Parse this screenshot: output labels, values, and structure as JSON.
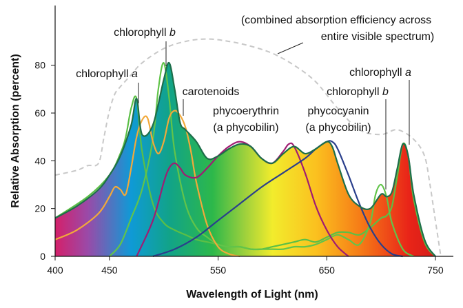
{
  "chart_data": {
    "type": "area",
    "xlabel": "Wavelength of Light (nm)",
    "ylabel": "Relative Absorption (percent)",
    "xlim": [
      400,
      760
    ],
    "ylim": [
      0,
      105
    ],
    "xticks": [
      400,
      450,
      550,
      650,
      750
    ],
    "yticks": [
      0,
      20,
      40,
      60,
      80
    ],
    "grid": false,
    "spectrum_gradient": [
      {
        "nm": 400,
        "color": "#d4206a"
      },
      {
        "nm": 430,
        "color": "#9a4aa8"
      },
      {
        "nm": 470,
        "color": "#0f9ad6"
      },
      {
        "nm": 505,
        "color": "#11a389"
      },
      {
        "nm": 545,
        "color": "#2db84a"
      },
      {
        "nm": 575,
        "color": "#9fd13c"
      },
      {
        "nm": 600,
        "color": "#f2ec2c"
      },
      {
        "nm": 640,
        "color": "#fbc11f"
      },
      {
        "nm": 680,
        "color": "#f67d17"
      },
      {
        "nm": 725,
        "color": "#e92518"
      },
      {
        "nm": 755,
        "color": "#d11a1a"
      }
    ],
    "envelope": {
      "name": "absorption-envelope",
      "color": "#1d6e4a",
      "x": [
        400,
        420,
        440,
        450,
        460,
        470,
        475,
        480,
        490,
        500,
        505,
        510,
        515,
        520,
        530,
        540,
        550,
        560,
        570,
        580,
        590,
        600,
        610,
        620,
        630,
        640,
        650,
        655,
        660,
        670,
        680,
        690,
        700,
        705,
        710,
        715,
        720,
        725,
        730,
        740,
        750
      ],
      "y": [
        16,
        21,
        28,
        34,
        42,
        55,
        66,
        51,
        55,
        74,
        81,
        70,
        56,
        53,
        48,
        41,
        42,
        45,
        47,
        46,
        41,
        39,
        43,
        46,
        43,
        45,
        48,
        46,
        39,
        26,
        21,
        20,
        26,
        25,
        27,
        37,
        47,
        42,
        26,
        7,
        0
      ]
    },
    "series": [
      {
        "label": "chlorophyll a",
        "color": "#5bbf46",
        "x": [
          400,
          430,
          450,
          460,
          465,
          470,
          475,
          480,
          490,
          500,
          510,
          520,
          530,
          540,
          550,
          560,
          570,
          580,
          590,
          600,
          610,
          620,
          630,
          640,
          650,
          660,
          670,
          680,
          690,
          700,
          705,
          710,
          715,
          720,
          725,
          730,
          740,
          750
        ],
        "y": [
          16,
          25,
          34,
          43,
          50,
          62,
          66,
          44,
          22,
          14,
          11,
          9,
          7,
          6,
          5,
          4,
          4,
          3,
          3,
          4,
          5,
          6,
          7,
          6,
          8,
          10,
          10,
          9,
          12,
          16,
          17,
          21,
          34,
          47,
          42,
          24,
          6,
          0
        ]
      },
      {
        "label": "chlorophyll b",
        "color": "#62c44a",
        "x": [
          450,
          460,
          470,
          480,
          490,
          495,
          500,
          505,
          510,
          520,
          530,
          540,
          550,
          560,
          570,
          580,
          590,
          600,
          610,
          620,
          630,
          640,
          650,
          660,
          670,
          680,
          690,
          695,
          700,
          705,
          710,
          720,
          730
        ],
        "y": [
          0,
          5,
          16,
          28,
          49,
          70,
          81,
          66,
          44,
          22,
          12,
          8,
          5,
          4,
          4,
          3,
          3,
          3,
          3,
          4,
          4,
          5,
          7,
          9,
          7,
          5,
          14,
          26,
          30,
          25,
          14,
          3,
          0
        ]
      },
      {
        "label": "carotenoids",
        "color": "#f2a93a",
        "x": [
          400,
          420,
          440,
          450,
          455,
          460,
          465,
          470,
          475,
          480,
          485,
          490,
          495,
          500,
          505,
          510,
          515,
          520,
          525,
          530,
          540,
          550,
          560,
          570
        ],
        "y": [
          7,
          11,
          18,
          25,
          29,
          28,
          26,
          37,
          50,
          57,
          58,
          48,
          43,
          48,
          58,
          61,
          59,
          54,
          44,
          31,
          13,
          4,
          1,
          0
        ]
      },
      {
        "label": "phycoerythrin (a phycobilin)",
        "color": "#a01c72",
        "x": [
          475,
          490,
          500,
          505,
          510,
          515,
          520,
          530,
          540,
          550,
          560,
          570,
          580,
          590,
          600,
          610,
          615,
          620,
          630,
          640,
          650,
          660,
          670
        ],
        "y": [
          0,
          15,
          31,
          37,
          39,
          37,
          34,
          33,
          37,
          42,
          46,
          48,
          46,
          41,
          39,
          44,
          47,
          46,
          35,
          21,
          11,
          4,
          0
        ]
      },
      {
        "label": "phycocyanin (a phycobilin)",
        "color": "#2a3f8c",
        "x": [
          490,
          510,
          530,
          550,
          570,
          590,
          610,
          630,
          640,
          650,
          655,
          660,
          670,
          680,
          690,
          700,
          710,
          720
        ],
        "y": [
          0,
          3,
          8,
          15,
          22,
          29,
          35,
          41,
          45,
          48,
          48,
          45,
          34,
          22,
          12,
          5,
          1,
          0
        ]
      }
    ],
    "combined_efficiency": {
      "label": "(combined absorption efficiency across entire visible spectrum)",
      "color": "#c8c8c8",
      "x": [
        400,
        420,
        430,
        440,
        445,
        450,
        455,
        460,
        470,
        480,
        500,
        520,
        540,
        560,
        580,
        600,
        620,
        640,
        660,
        680,
        700,
        715,
        730,
        740,
        745,
        750,
        755
      ],
      "y": [
        34,
        36,
        38,
        39,
        50,
        61,
        68,
        71,
        76,
        81,
        87,
        90,
        91,
        90,
        88,
        85,
        80,
        73,
        62,
        53,
        51,
        53,
        49,
        42,
        30,
        15,
        0
      ]
    },
    "annotations": [
      {
        "id": "chl-b-left",
        "text": "chlorophyll",
        "italic": "b",
        "target_nm": 500,
        "target_pct": 82
      },
      {
        "id": "chl-a-left",
        "text": "chlorophyll",
        "italic": "a",
        "target_nm": 474,
        "target_pct": 67
      },
      {
        "id": "carotenoids",
        "text": "carotenoids",
        "italic": "",
        "target_nm": 511,
        "target_pct": 62
      },
      {
        "id": "phycoerythrin",
        "text": "phycoerythrin",
        "line2": "(a phycobilin)",
        "target_nm": 0,
        "target_pct": 0
      },
      {
        "id": "phycocyanin",
        "text": "phycocyanin",
        "line2": "(a phycobilin)",
        "target_nm": 0,
        "target_pct": 0
      },
      {
        "id": "chl-a-right",
        "text": "chlorophyll",
        "italic": "a",
        "target_nm": 720,
        "target_pct": 48
      },
      {
        "id": "chl-b-right",
        "text": "chlorophyll",
        "italic": "b",
        "target_nm": 698,
        "target_pct": 30
      },
      {
        "id": "combined",
        "text": "(combined absorption efficiency across",
        "line2": "entire visible spectrum)",
        "target_nm": 645,
        "target_pct": 84
      }
    ]
  }
}
